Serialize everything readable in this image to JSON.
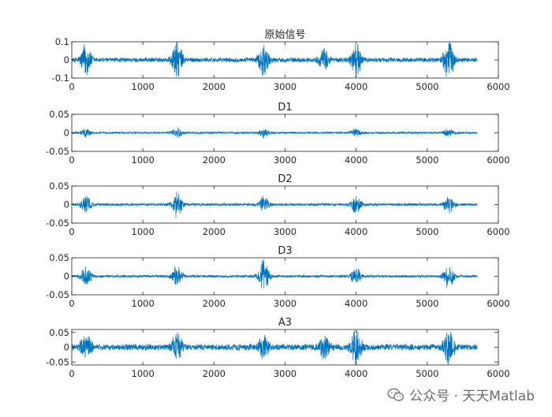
{
  "chart_data": [
    {
      "type": "line",
      "title": "原始信号",
      "xlim": [
        0,
        6000
      ],
      "ylim": [
        -0.1,
        0.1
      ],
      "xticks": [
        0,
        1000,
        2000,
        3000,
        4000,
        5000,
        6000
      ],
      "yticks": [
        0.1,
        0,
        -0.1
      ],
      "ytick_labels": [
        "0.1",
        "0",
        "-0.1"
      ],
      "n_points": 5700,
      "bursts": [
        {
          "center": 200,
          "amplitude": 0.1
        },
        {
          "center": 1480,
          "amplitude": 0.12
        },
        {
          "center": 2700,
          "amplitude": 0.1
        },
        {
          "center": 3550,
          "amplitude": 0.06
        },
        {
          "center": 4000,
          "amplitude": 0.1
        },
        {
          "center": 5300,
          "amplitude": 0.12
        }
      ],
      "noise_level": 0.015,
      "color": "#0072BD"
    },
    {
      "type": "line",
      "title": "D1",
      "xlim": [
        0,
        6000
      ],
      "ylim": [
        -0.05,
        0.05
      ],
      "xticks": [
        0,
        1000,
        2000,
        3000,
        4000,
        5000,
        6000
      ],
      "yticks": [
        0.05,
        0,
        -0.05
      ],
      "ytick_labels": [
        "0.05",
        "0",
        "-0.05"
      ],
      "n_points": 5700,
      "bursts": [
        {
          "center": 200,
          "amplitude": 0.012
        },
        {
          "center": 1480,
          "amplitude": 0.015
        },
        {
          "center": 2700,
          "amplitude": 0.012
        },
        {
          "center": 4000,
          "amplitude": 0.012
        },
        {
          "center": 5300,
          "amplitude": 0.012
        }
      ],
      "noise_level": 0.003,
      "color": "#0072BD"
    },
    {
      "type": "line",
      "title": "D2",
      "xlim": [
        0,
        6000
      ],
      "ylim": [
        -0.05,
        0.05
      ],
      "xticks": [
        0,
        1000,
        2000,
        3000,
        4000,
        5000,
        6000
      ],
      "yticks": [
        0.05,
        0,
        -0.05
      ],
      "ytick_labels": [
        "0.05",
        "0",
        "-0.05"
      ],
      "n_points": 5700,
      "bursts": [
        {
          "center": 200,
          "amplitude": 0.025
        },
        {
          "center": 1480,
          "amplitude": 0.035
        },
        {
          "center": 2700,
          "amplitude": 0.025
        },
        {
          "center": 4000,
          "amplitude": 0.025
        },
        {
          "center": 5300,
          "amplitude": 0.025
        }
      ],
      "noise_level": 0.004,
      "color": "#0072BD"
    },
    {
      "type": "line",
      "title": "D3",
      "xlim": [
        0,
        6000
      ],
      "ylim": [
        -0.05,
        0.05
      ],
      "xticks": [
        0,
        1000,
        2000,
        3000,
        4000,
        5000,
        6000
      ],
      "yticks": [
        0.05,
        0,
        -0.05
      ],
      "ytick_labels": [
        "0.05",
        "0",
        "-0.05"
      ],
      "n_points": 5700,
      "bursts": [
        {
          "center": 200,
          "amplitude": 0.03
        },
        {
          "center": 1480,
          "amplitude": 0.03
        },
        {
          "center": 2700,
          "amplitude": 0.05
        },
        {
          "center": 4000,
          "amplitude": 0.025
        },
        {
          "center": 5300,
          "amplitude": 0.035
        }
      ],
      "noise_level": 0.004,
      "color": "#0072BD"
    },
    {
      "type": "line",
      "title": "A3",
      "xlim": [
        0,
        6000
      ],
      "ylim": [
        -0.06,
        0.06
      ],
      "xticks": [
        0,
        1000,
        2000,
        3000,
        4000,
        5000,
        6000
      ],
      "yticks": [
        0.05,
        0,
        -0.05
      ],
      "ytick_labels": [
        "0.05",
        "0",
        "-0.05"
      ],
      "n_points": 5700,
      "bursts": [
        {
          "center": 200,
          "amplitude": 0.05
        },
        {
          "center": 1480,
          "amplitude": 0.05
        },
        {
          "center": 2700,
          "amplitude": 0.04
        },
        {
          "center": 3550,
          "amplitude": 0.04
        },
        {
          "center": 4000,
          "amplitude": 0.06
        },
        {
          "center": 5300,
          "amplitude": 0.06
        }
      ],
      "noise_level": 0.012,
      "color": "#0072BD"
    }
  ],
  "watermark": {
    "text": "公众号 · 天天Matlab",
    "icon": "wechat-icon"
  }
}
